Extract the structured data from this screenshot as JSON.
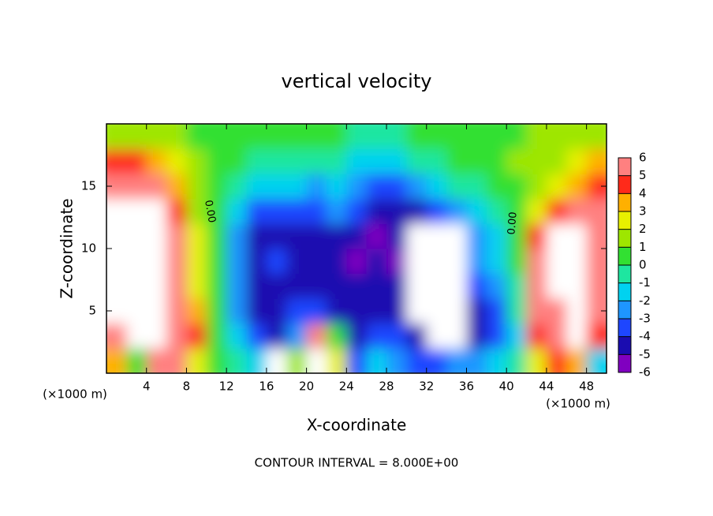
{
  "chart_data": {
    "type": "heatmap",
    "title": "vertical velocity",
    "x_label": "X-coordinate",
    "y_label": "Z-coordinate",
    "unit_label": "(×1000 m)",
    "annotation": "CONTOUR INTERVAL = 8.000E+00",
    "contour_labels": [
      {
        "value": 0,
        "label": "0.00"
      },
      {
        "value": 0,
        "label": "0.00"
      }
    ],
    "xlim": [
      0,
      50
    ],
    "xticks": [
      4,
      8,
      12,
      16,
      20,
      24,
      28,
      32,
      36,
      40,
      44,
      48
    ],
    "ylim": [
      0,
      20
    ],
    "yticks": [
      5,
      10,
      15
    ],
    "x": [
      1,
      3,
      5,
      7,
      9,
      11,
      13,
      15,
      17,
      19,
      21,
      23,
      25,
      27,
      29,
      31,
      33,
      35,
      37,
      39,
      41,
      43,
      45,
      47,
      49
    ],
    "y": [
      1,
      3,
      5,
      7,
      9,
      11,
      13,
      15,
      17,
      19
    ],
    "values": [
      [
        3,
        0,
        5,
        6,
        2,
        0,
        -1,
        -2,
        7,
        1,
        8,
        2,
        -4,
        -2,
        -3,
        -4,
        -4,
        -3,
        -3,
        -2,
        -1,
        2,
        4,
        3,
        -2
      ],
      [
        6,
        8,
        7,
        6,
        4,
        0,
        -2,
        -4,
        -5,
        -3,
        5,
        0,
        -5,
        -4,
        -4,
        -5,
        7,
        8,
        -5,
        -4,
        -2,
        4,
        6,
        8,
        4
      ],
      [
        7,
        8,
        8,
        6,
        3,
        0,
        -3,
        -5,
        -5,
        -4,
        -4,
        -5,
        -5,
        -5,
        -5,
        8,
        8,
        8,
        -5,
        -4,
        -1,
        5,
        6,
        7,
        5
      ],
      [
        8,
        8,
        8,
        5,
        2,
        0,
        -3,
        -5,
        -5,
        -5,
        -5,
        -5,
        -5,
        -5,
        -5,
        8,
        8,
        8,
        -4,
        -3,
        -1,
        5,
        8,
        8,
        5
      ],
      [
        8,
        8,
        8,
        5,
        2,
        0,
        -3,
        -5,
        -4,
        -5,
        -5,
        -5,
        -6,
        -5,
        -6,
        8,
        8,
        8,
        -3,
        -2,
        0,
        5,
        8,
        8,
        6
      ],
      [
        8,
        8,
        8,
        5,
        2,
        0,
        -3,
        -5,
        -5,
        -5,
        -5,
        -5,
        -5,
        -6,
        -5,
        8,
        8,
        8,
        -3,
        -2,
        0,
        4,
        7,
        8,
        6
      ],
      [
        8,
        8,
        7,
        4,
        1,
        0,
        -2,
        -4,
        -4,
        -4,
        -4,
        -3,
        -4,
        -5,
        -5,
        -5,
        -4,
        -3,
        -2,
        -1,
        0,
        2,
        4,
        5,
        5
      ],
      [
        6,
        6,
        5,
        3,
        1,
        0,
        -1,
        -2,
        -2,
        -2,
        -3,
        -2,
        -3,
        -4,
        -4,
        -3,
        -2,
        -1,
        -1,
        0,
        0,
        1,
        2,
        3,
        4
      ],
      [
        4,
        4,
        3,
        2,
        1,
        0,
        0,
        -1,
        -1,
        -1,
        -1,
        -1,
        -2,
        -2,
        -2,
        -1,
        -1,
        0,
        0,
        0,
        1,
        1,
        1,
        2,
        3
      ],
      [
        1,
        1,
        1,
        1,
        0,
        0,
        0,
        0,
        0,
        0,
        0,
        0,
        -1,
        -1,
        -1,
        0,
        0,
        0,
        0,
        0,
        0,
        1,
        1,
        1,
        1
      ]
    ],
    "colorbar": {
      "levels": [
        -6,
        -5,
        -4,
        -3,
        -2,
        -1,
        0,
        1,
        2,
        3,
        4,
        5,
        6
      ],
      "colors": [
        "#8000c0",
        "#1a0cb0",
        "#1e46ff",
        "#1e96ff",
        "#00d2f0",
        "#1ee6a0",
        "#32e032",
        "#9ee600",
        "#e8f000",
        "#ffb000",
        "#ff2a1a",
        "#ff8080"
      ],
      "over_color": "#ffffff"
    }
  }
}
